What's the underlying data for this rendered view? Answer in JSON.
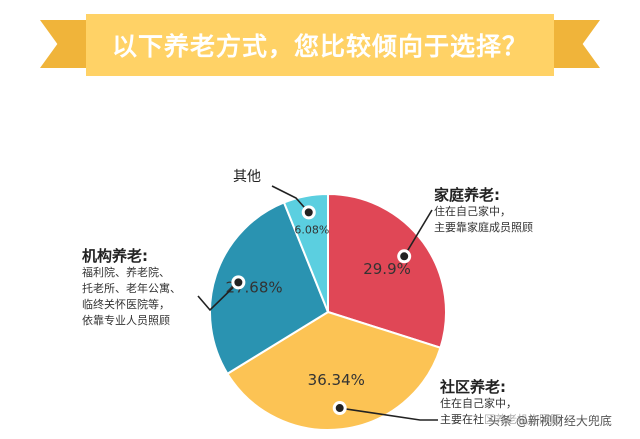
{
  "banner": {
    "title": "以下养老方式，您比较倾向于选择？"
  },
  "chart_data": {
    "type": "pie",
    "title": "以下养老方式，您比较倾向于选择？",
    "slices": [
      {
        "label": "家庭养老",
        "value": 29.9,
        "value_label": "29.9%",
        "color": "#e04756",
        "notes": [
          "住在自己家中，",
          "主要靠家庭成员照顾"
        ]
      },
      {
        "label": "社区养老",
        "value": 36.34,
        "value_label": "36.34%",
        "color": "#fcc354",
        "notes": [
          "住在自己家中，",
          "主要在社区养老机构照顾"
        ]
      },
      {
        "label": "机构养老",
        "value": 27.68,
        "value_label": "27.68%",
        "color": "#2a93b1",
        "notes": [
          "福利院、养老院、",
          "托老所、老年公寓、",
          "临终关怀医院等，",
          "依靠专业人员照顾"
        ]
      },
      {
        "label": "其他",
        "value": 6.08,
        "value_label": "6.08%",
        "color": "#5bcfe0",
        "notes": []
      }
    ],
    "start_angle_deg": 0,
    "direction": "clockwise"
  },
  "annotations": {
    "family": {
      "head": "家庭养老:",
      "lines": [
        "住在自己家中，",
        "主要靠家庭成员照顾"
      ]
    },
    "institution": {
      "head": "机构养老:",
      "lines": [
        "福利院、养老院、",
        "托老所、老年公寓、",
        "临终关怀医院等，",
        "依靠专业人员照顾"
      ]
    },
    "community": {
      "head": "社区养老:",
      "lines": [
        "住在自己家中，",
        "主要在社区养老机构照顾"
      ]
    },
    "other": {
      "head": "其他"
    }
  },
  "watermark": "头条 @新视财经大兜底"
}
